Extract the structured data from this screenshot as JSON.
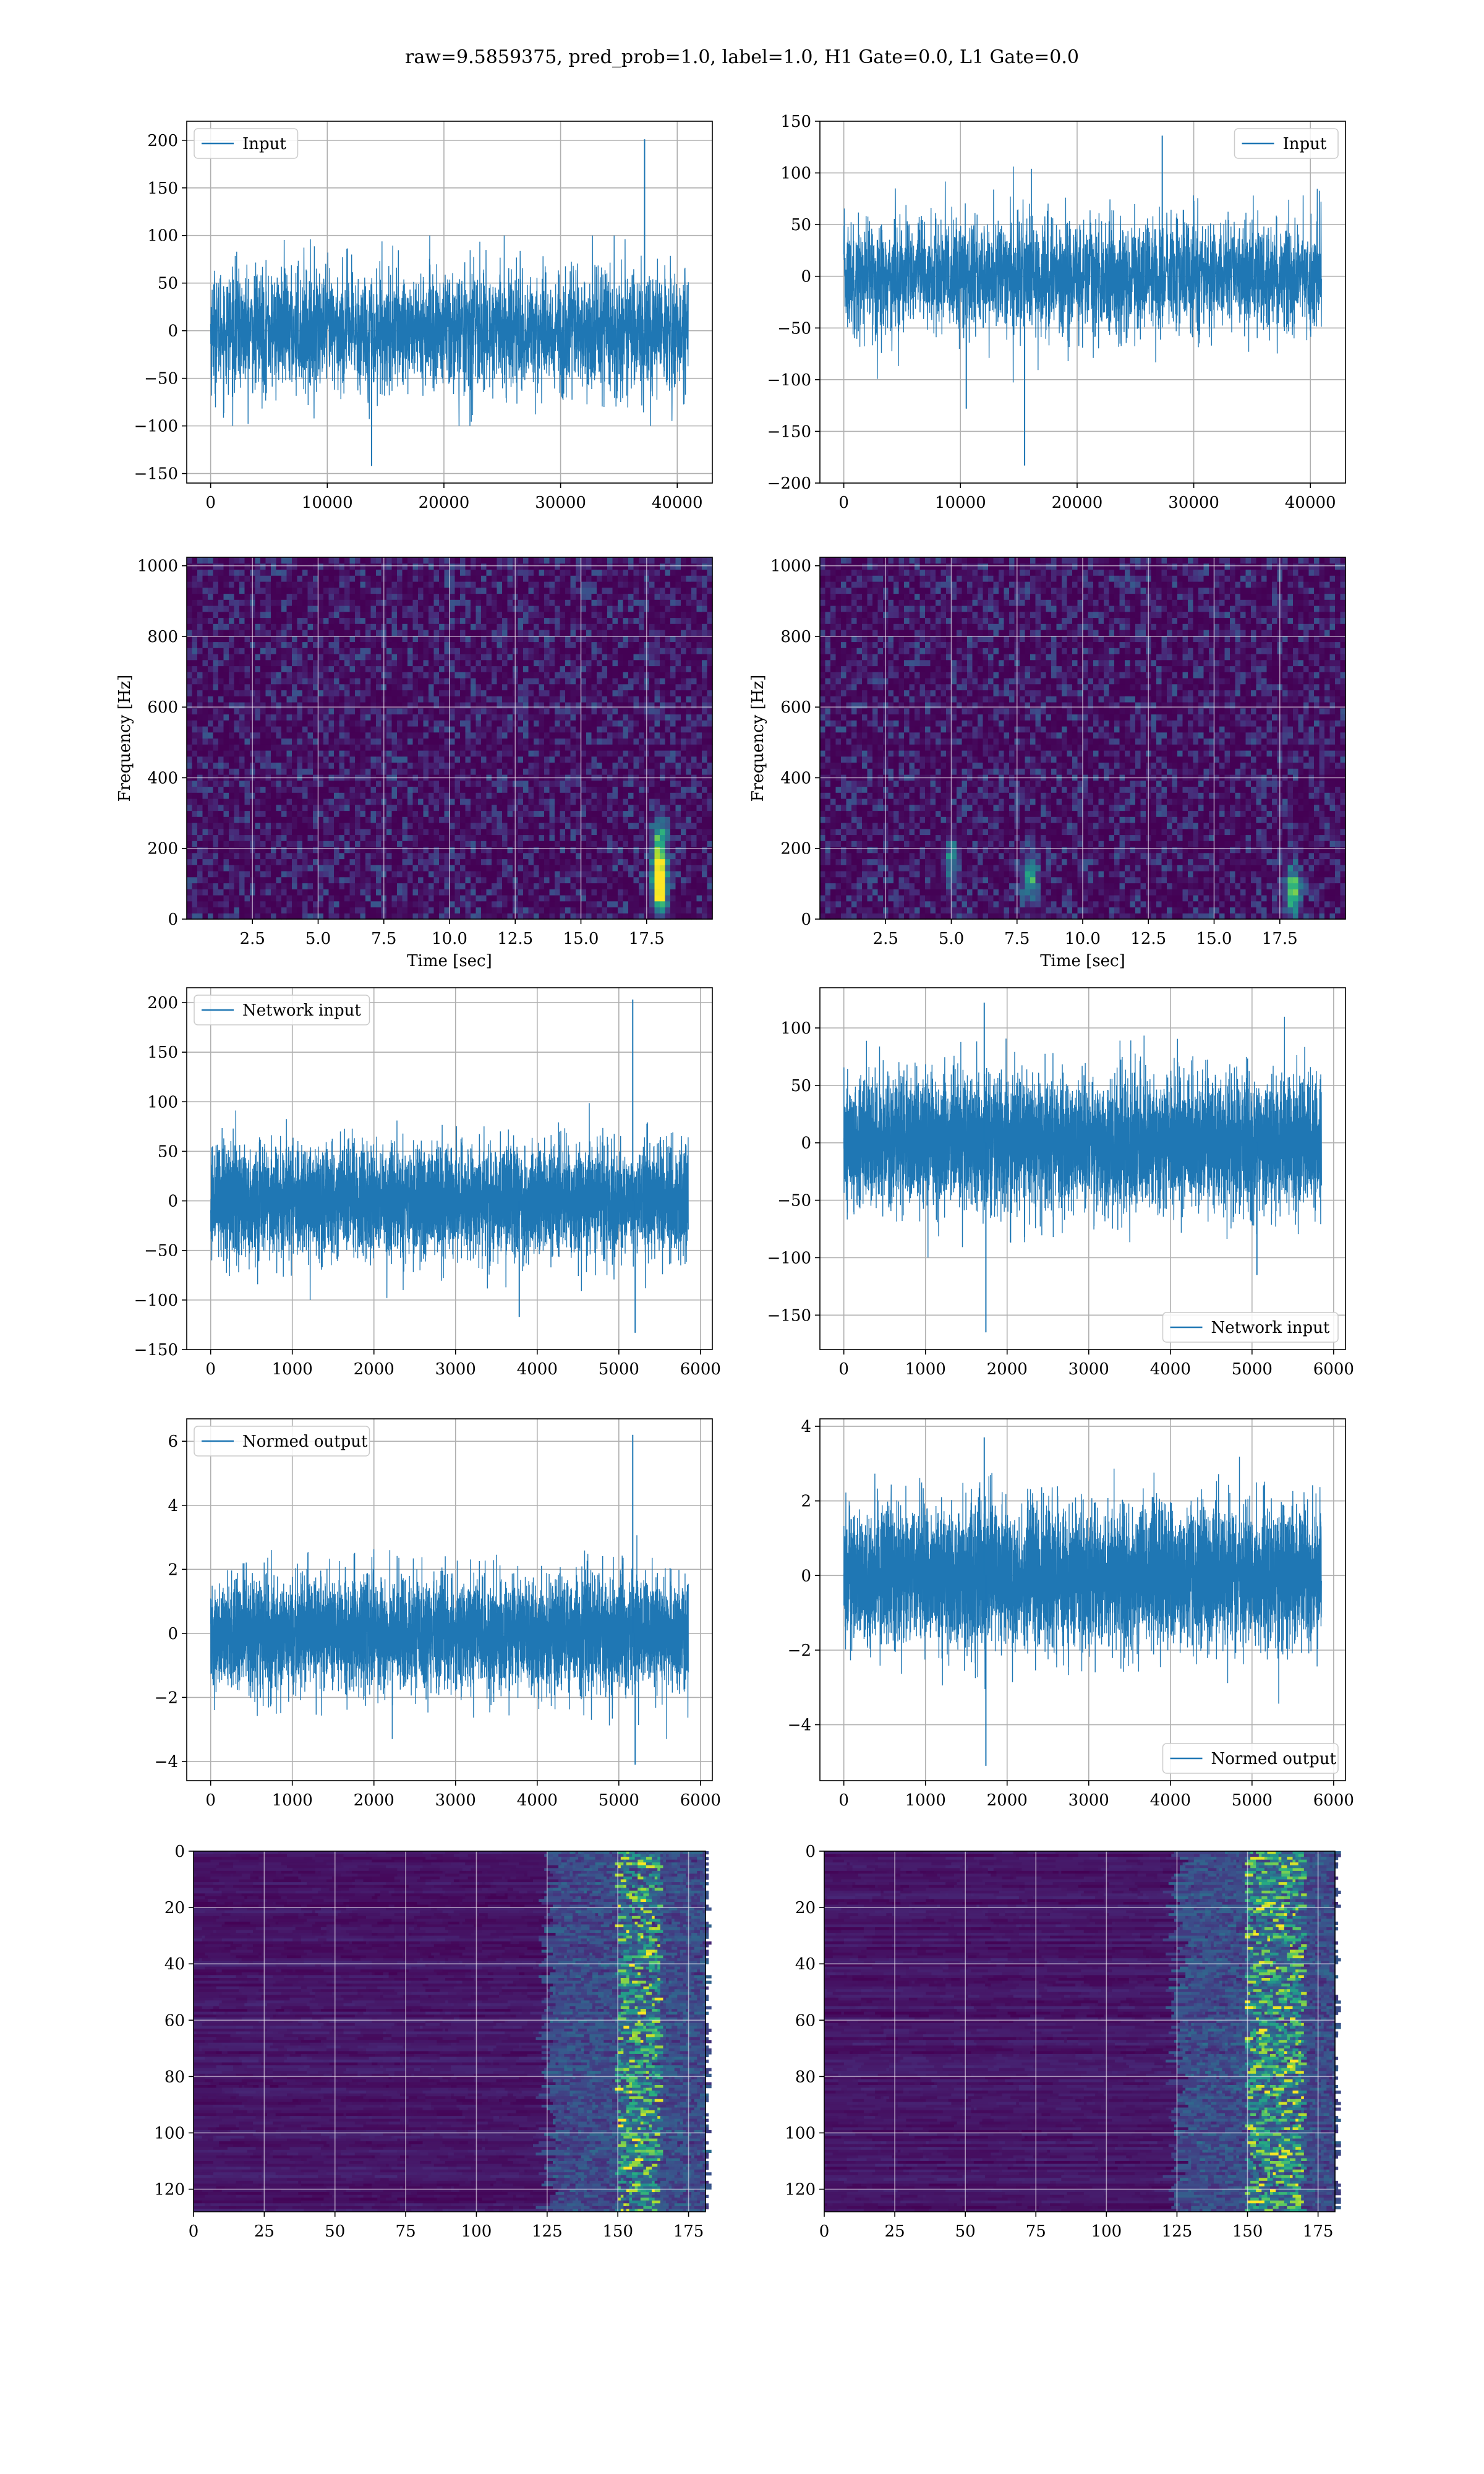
{
  "figure_title": "raw=9.5859375, pred_prob=1.0, label=1.0, H1 Gate=0.0, L1 Gate=0.0",
  "colors": {
    "line": "#1f77b4",
    "grid": "#b0b0b0",
    "viridis_dark": "#440154",
    "viridis_mid": "#21918c",
    "viridis_bright": "#fde725"
  },
  "chart_data": [
    {
      "id": "input-left",
      "type": "line",
      "series": [
        {
          "name": "Input",
          "pattern": "white-noise",
          "n_samples": 40960,
          "sigma": 32,
          "envelope_min": -100,
          "envelope_max": 100,
          "spikes": [
            {
              "x": 37200,
              "y": 201
            },
            {
              "x": 13800,
              "y": -142
            }
          ]
        }
      ],
      "xlim": [
        -2048,
        43008
      ],
      "ylim": [
        -160,
        220
      ],
      "xticks": [
        0,
        10000,
        20000,
        30000,
        40000
      ],
      "xtick_labels": [
        "0",
        "10000",
        "20000",
        "30000",
        "40000"
      ],
      "yticks": [
        -150,
        -100,
        -50,
        0,
        50,
        100,
        150,
        200
      ],
      "ytick_labels": [
        "−150",
        "−100",
        "−50",
        "0",
        "50",
        "100",
        "150",
        "200"
      ],
      "legend": "upper left",
      "grid": true
    },
    {
      "id": "input-right",
      "type": "line",
      "series": [
        {
          "name": "Input",
          "pattern": "white-noise",
          "n_samples": 40960,
          "sigma": 28,
          "envelope_min": -105,
          "envelope_max": 115,
          "spikes": [
            {
              "x": 27300,
              "y": 136
            },
            {
              "x": 15500,
              "y": -183
            },
            {
              "x": 10500,
              "y": -128
            }
          ]
        }
      ],
      "xlim": [
        -2048,
        43008
      ],
      "ylim": [
        -200,
        150
      ],
      "xticks": [
        0,
        10000,
        20000,
        30000,
        40000
      ],
      "xtick_labels": [
        "0",
        "10000",
        "20000",
        "30000",
        "40000"
      ],
      "yticks": [
        -200,
        -150,
        -100,
        -50,
        0,
        50,
        100,
        150
      ],
      "ytick_labels": [
        "−200",
        "−150",
        "−100",
        "−50",
        "0",
        "50",
        "100",
        "150"
      ],
      "legend": "upper right",
      "grid": true
    },
    {
      "id": "spectrogram-left",
      "type": "heatmap",
      "xlabel": "Time [sec]",
      "ylabel": "Frequency [Hz]",
      "xlim": [
        0,
        20
      ],
      "ylim": [
        0,
        1024
      ],
      "xticks": [
        2.5,
        5,
        7.5,
        10,
        12.5,
        15,
        17.5
      ],
      "xtick_labels": [
        "2.5",
        "5.0",
        "7.5",
        "10.0",
        "12.5",
        "15.0",
        "17.5"
      ],
      "yticks": [
        0,
        200,
        400,
        600,
        800,
        1000
      ],
      "ytick_labels": [
        "0",
        "200",
        "400",
        "600",
        "800",
        "1000"
      ],
      "hotspots": [
        {
          "x": 18.0,
          "y": 80,
          "v": 1.0
        },
        {
          "x": 18.0,
          "y": 150,
          "v": 0.7
        },
        {
          "x": 18.0,
          "y": 230,
          "v": 0.5
        }
      ],
      "grid": true
    },
    {
      "id": "spectrogram-right",
      "type": "heatmap",
      "xlabel": "Time [sec]",
      "ylabel": "Frequency [Hz]",
      "xlim": [
        0,
        20
      ],
      "ylim": [
        0,
        1024
      ],
      "xticks": [
        2.5,
        5,
        7.5,
        10,
        12.5,
        15,
        17.5
      ],
      "xtick_labels": [
        "2.5",
        "5.0",
        "7.5",
        "10.0",
        "12.5",
        "15.0",
        "17.5"
      ],
      "yticks": [
        0,
        200,
        400,
        600,
        800,
        1000
      ],
      "ytick_labels": [
        "0",
        "200",
        "400",
        "600",
        "800",
        "1000"
      ],
      "hotspots": [
        {
          "x": 8.0,
          "y": 120,
          "v": 0.6
        },
        {
          "x": 18.0,
          "y": 80,
          "v": 0.8
        },
        {
          "x": 5.0,
          "y": 160,
          "v": 0.4
        }
      ],
      "grid": true
    },
    {
      "id": "network-input-left",
      "type": "line",
      "series": [
        {
          "name": "Network input",
          "pattern": "white-noise",
          "n_samples": 5852,
          "sigma": 27,
          "envelope_min": -100,
          "envelope_max": 110,
          "spikes": [
            {
              "x": 5170,
              "y": 203
            },
            {
              "x": 5200,
              "y": -133
            },
            {
              "x": 3780,
              "y": -117
            }
          ]
        }
      ],
      "xlim": [
        -293,
        6145
      ],
      "ylim": [
        -150,
        215
      ],
      "xticks": [
        0,
        1000,
        2000,
        3000,
        4000,
        5000,
        6000
      ],
      "xtick_labels": [
        "0",
        "1000",
        "2000",
        "3000",
        "4000",
        "5000",
        "6000"
      ],
      "yticks": [
        -150,
        -100,
        -50,
        0,
        50,
        100,
        150,
        200
      ],
      "ytick_labels": [
        "−150",
        "−100",
        "−50",
        "0",
        "50",
        "100",
        "150",
        "200"
      ],
      "legend": "upper left",
      "grid": true
    },
    {
      "id": "network-input-right",
      "type": "line",
      "series": [
        {
          "name": "Network input",
          "pattern": "white-noise",
          "n_samples": 5852,
          "sigma": 28,
          "envelope_min": -110,
          "envelope_max": 120,
          "spikes": [
            {
              "x": 1720,
              "y": 122
            },
            {
              "x": 1740,
              "y": -165
            },
            {
              "x": 5060,
              "y": -115
            }
          ]
        }
      ],
      "xlim": [
        -293,
        6145
      ],
      "ylim": [
        -180,
        135
      ],
      "xticks": [
        0,
        1000,
        2000,
        3000,
        4000,
        5000,
        6000
      ],
      "xtick_labels": [
        "0",
        "1000",
        "2000",
        "3000",
        "4000",
        "5000",
        "6000"
      ],
      "yticks": [
        -150,
        -100,
        -50,
        0,
        50,
        100
      ],
      "ytick_labels": [
        "−150",
        "−100",
        "−50",
        "0",
        "50",
        "100"
      ],
      "legend": "lower right",
      "grid": true
    },
    {
      "id": "normed-output-left",
      "type": "line",
      "series": [
        {
          "name": "Normed output",
          "pattern": "white-noise",
          "n_samples": 5852,
          "sigma": 0.85,
          "envelope_min": -3.3,
          "envelope_max": 3.5,
          "spikes": [
            {
              "x": 5170,
              "y": 6.2
            },
            {
              "x": 5200,
              "y": -4.1
            }
          ]
        }
      ],
      "xlim": [
        -293,
        6145
      ],
      "ylim": [
        -4.6,
        6.7
      ],
      "xticks": [
        0,
        1000,
        2000,
        3000,
        4000,
        5000,
        6000
      ],
      "xtick_labels": [
        "0",
        "1000",
        "2000",
        "3000",
        "4000",
        "5000",
        "6000"
      ],
      "yticks": [
        -4,
        -2,
        0,
        2,
        4,
        6
      ],
      "ytick_labels": [
        "−4",
        "−2",
        "0",
        "2",
        "4",
        "6"
      ],
      "legend": "upper left",
      "grid": true
    },
    {
      "id": "normed-output-right",
      "type": "line",
      "series": [
        {
          "name": "Normed output",
          "pattern": "white-noise",
          "n_samples": 5852,
          "sigma": 0.9,
          "envelope_min": -3.5,
          "envelope_max": 3.6,
          "spikes": [
            {
              "x": 1720,
              "y": 3.7
            },
            {
              "x": 1740,
              "y": -5.1
            }
          ]
        }
      ],
      "xlim": [
        -293,
        6145
      ],
      "ylim": [
        -5.5,
        4.2
      ],
      "xticks": [
        0,
        1000,
        2000,
        3000,
        4000,
        5000,
        6000
      ],
      "xtick_labels": [
        "0",
        "1000",
        "2000",
        "3000",
        "4000",
        "5000",
        "6000"
      ],
      "yticks": [
        -4,
        -2,
        0,
        2,
        4
      ],
      "ytick_labels": [
        "−4",
        "−2",
        "0",
        "2",
        "4"
      ],
      "legend": "lower right",
      "grid": true
    },
    {
      "id": "feature-map-left",
      "type": "heatmap",
      "xlim": [
        0,
        181
      ],
      "ylim": [
        128,
        0
      ],
      "xticks": [
        0,
        25,
        50,
        75,
        100,
        125,
        150,
        175
      ],
      "xtick_labels": [
        "0",
        "25",
        "50",
        "75",
        "100",
        "125",
        "150",
        "175"
      ],
      "yticks": [
        0,
        20,
        40,
        60,
        80,
        100,
        120
      ],
      "ytick_labels": [
        "0",
        "20",
        "40",
        "60",
        "80",
        "100",
        "120"
      ],
      "active_band": [
        125,
        181
      ],
      "peak_band": [
        150,
        165
      ],
      "grid": true
    },
    {
      "id": "feature-map-right",
      "type": "heatmap",
      "xlim": [
        0,
        181
      ],
      "ylim": [
        128,
        0
      ],
      "xticks": [
        0,
        25,
        50,
        75,
        100,
        125,
        150,
        175
      ],
      "xtick_labels": [
        "0",
        "25",
        "50",
        "75",
        "100",
        "125",
        "150",
        "175"
      ],
      "yticks": [
        0,
        20,
        40,
        60,
        80,
        100,
        120
      ],
      "ytick_labels": [
        "0",
        "20",
        "40",
        "60",
        "80",
        "100",
        "120"
      ],
      "active_band": [
        125,
        181
      ],
      "peak_band": [
        150,
        170
      ],
      "grid": true
    }
  ]
}
